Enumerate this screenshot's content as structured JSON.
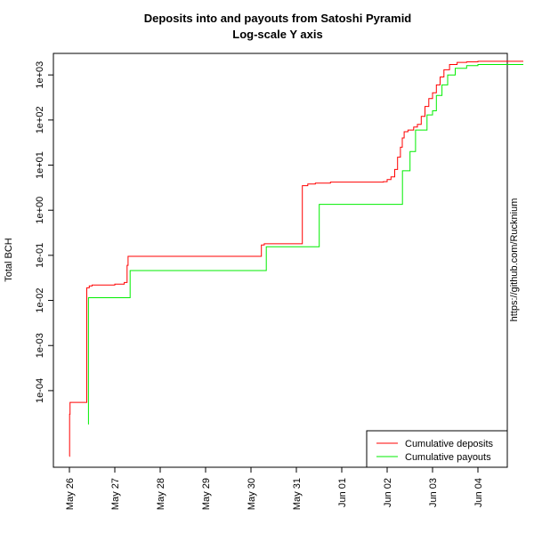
{
  "chart_data": {
    "type": "line",
    "title": "Deposits into and payouts from Satoshi Pyramid",
    "subtitle": "Log-scale Y axis",
    "xlabel": "",
    "ylabel": "Total BCH",
    "side_text": "https://github.com/Rucknium",
    "y_scale": "log10",
    "xlim": [
      "2022-05-26",
      "2022-06-05"
    ],
    "ylim": [
      2e-06,
      3000
    ],
    "x_tick_labels": [
      "May 26",
      "May 27",
      "May 28",
      "May 29",
      "May 30",
      "May 31",
      "Jun 01",
      "Jun 02",
      "Jun 03",
      "Jun 04"
    ],
    "y_tick_labels": [
      "1e-04",
      "1e-03",
      "1e-02",
      "1e-01",
      "1e+00",
      "1e+01",
      "1e+02",
      "1e+03"
    ],
    "legend_position": "bottom-right",
    "grid": false,
    "series": [
      {
        "name": "Cumulative deposits",
        "color": "#ff0000",
        "points": [
          [
            "2022-05-26 00:00",
            3.5e-06
          ],
          [
            "2022-05-26 00:05",
            3e-05
          ],
          [
            "2022-05-26 00:20",
            5.5e-05
          ],
          [
            "2022-05-26 09:00",
            5.5e-05
          ],
          [
            "2022-05-26 09:10",
            0.019
          ],
          [
            "2022-05-26 10:30",
            0.021
          ],
          [
            "2022-05-26 12:00",
            0.022
          ],
          [
            "2022-05-26 18:00",
            0.022
          ],
          [
            "2022-05-27 00:00",
            0.023
          ],
          [
            "2022-05-27 05:00",
            0.025
          ],
          [
            "2022-05-27 06:30",
            0.06
          ],
          [
            "2022-05-27 07:00",
            0.095
          ],
          [
            "2022-05-30 00:00",
            0.095
          ],
          [
            "2022-05-30 05:00",
            0.095
          ],
          [
            "2022-05-30 05:30",
            0.17
          ],
          [
            "2022-05-30 07:00",
            0.18
          ],
          [
            "2022-05-31 00:00",
            0.18
          ],
          [
            "2022-05-31 03:00",
            0.18
          ],
          [
            "2022-05-31 03:10",
            3.5
          ],
          [
            "2022-05-31 06:00",
            3.8
          ],
          [
            "2022-05-31 10:00",
            4.0
          ],
          [
            "2022-05-31 18:00",
            4.2
          ],
          [
            "2022-06-01 12:00",
            4.2
          ],
          [
            "2022-06-01 22:00",
            4.3
          ],
          [
            "2022-06-02 00:00",
            4.8
          ],
          [
            "2022-06-02 02:00",
            5.5
          ],
          [
            "2022-06-02 04:00",
            8
          ],
          [
            "2022-06-02 05:30",
            15
          ],
          [
            "2022-06-02 07:00",
            25
          ],
          [
            "2022-06-02 08:00",
            40
          ],
          [
            "2022-06-02 09:00",
            55
          ],
          [
            "2022-06-02 11:00",
            60
          ],
          [
            "2022-06-02 14:00",
            70
          ],
          [
            "2022-06-02 16:00",
            80
          ],
          [
            "2022-06-02 18:00",
            120
          ],
          [
            "2022-06-02 20:00",
            200
          ],
          [
            "2022-06-02 22:00",
            300
          ],
          [
            "2022-06-03 00:00",
            400
          ],
          [
            "2022-06-03 02:00",
            600
          ],
          [
            "2022-06-03 04:00",
            900
          ],
          [
            "2022-06-03 06:00",
            1300
          ],
          [
            "2022-06-03 09:00",
            1700
          ],
          [
            "2022-06-03 13:00",
            1900
          ],
          [
            "2022-06-03 18:00",
            1950
          ],
          [
            "2022-06-04 00:00",
            2000
          ],
          [
            "2022-06-05 00:00",
            2000
          ]
        ]
      },
      {
        "name": "Cumulative payouts",
        "color": "#00ee00",
        "points": [
          [
            "2022-05-26 10:00",
            1.8e-05
          ],
          [
            "2022-05-26 10:05",
            0.0115
          ],
          [
            "2022-05-27 08:00",
            0.0115
          ],
          [
            "2022-05-27 08:05",
            0.046
          ],
          [
            "2022-05-30 08:00",
            0.046
          ],
          [
            "2022-05-30 08:05",
            0.155
          ],
          [
            "2022-05-31 12:00",
            0.155
          ],
          [
            "2022-05-31 12:05",
            1.35
          ],
          [
            "2022-06-02 08:00",
            1.35
          ],
          [
            "2022-06-02 08:05",
            7.5
          ],
          [
            "2022-06-02 12:00",
            7.5
          ],
          [
            "2022-06-02 12:05",
            20
          ],
          [
            "2022-06-02 15:00",
            60
          ],
          [
            "2022-06-02 21:00",
            60
          ],
          [
            "2022-06-02 21:05",
            130
          ],
          [
            "2022-06-03 00:00",
            160
          ],
          [
            "2022-06-03 02:00",
            350
          ],
          [
            "2022-06-03 05:00",
            600
          ],
          [
            "2022-06-03 08:00",
            1000
          ],
          [
            "2022-06-03 12:00",
            1400
          ],
          [
            "2022-06-03 18:00",
            1600
          ],
          [
            "2022-06-04 00:00",
            1700
          ],
          [
            "2022-06-05 00:00",
            1700
          ]
        ]
      }
    ]
  }
}
